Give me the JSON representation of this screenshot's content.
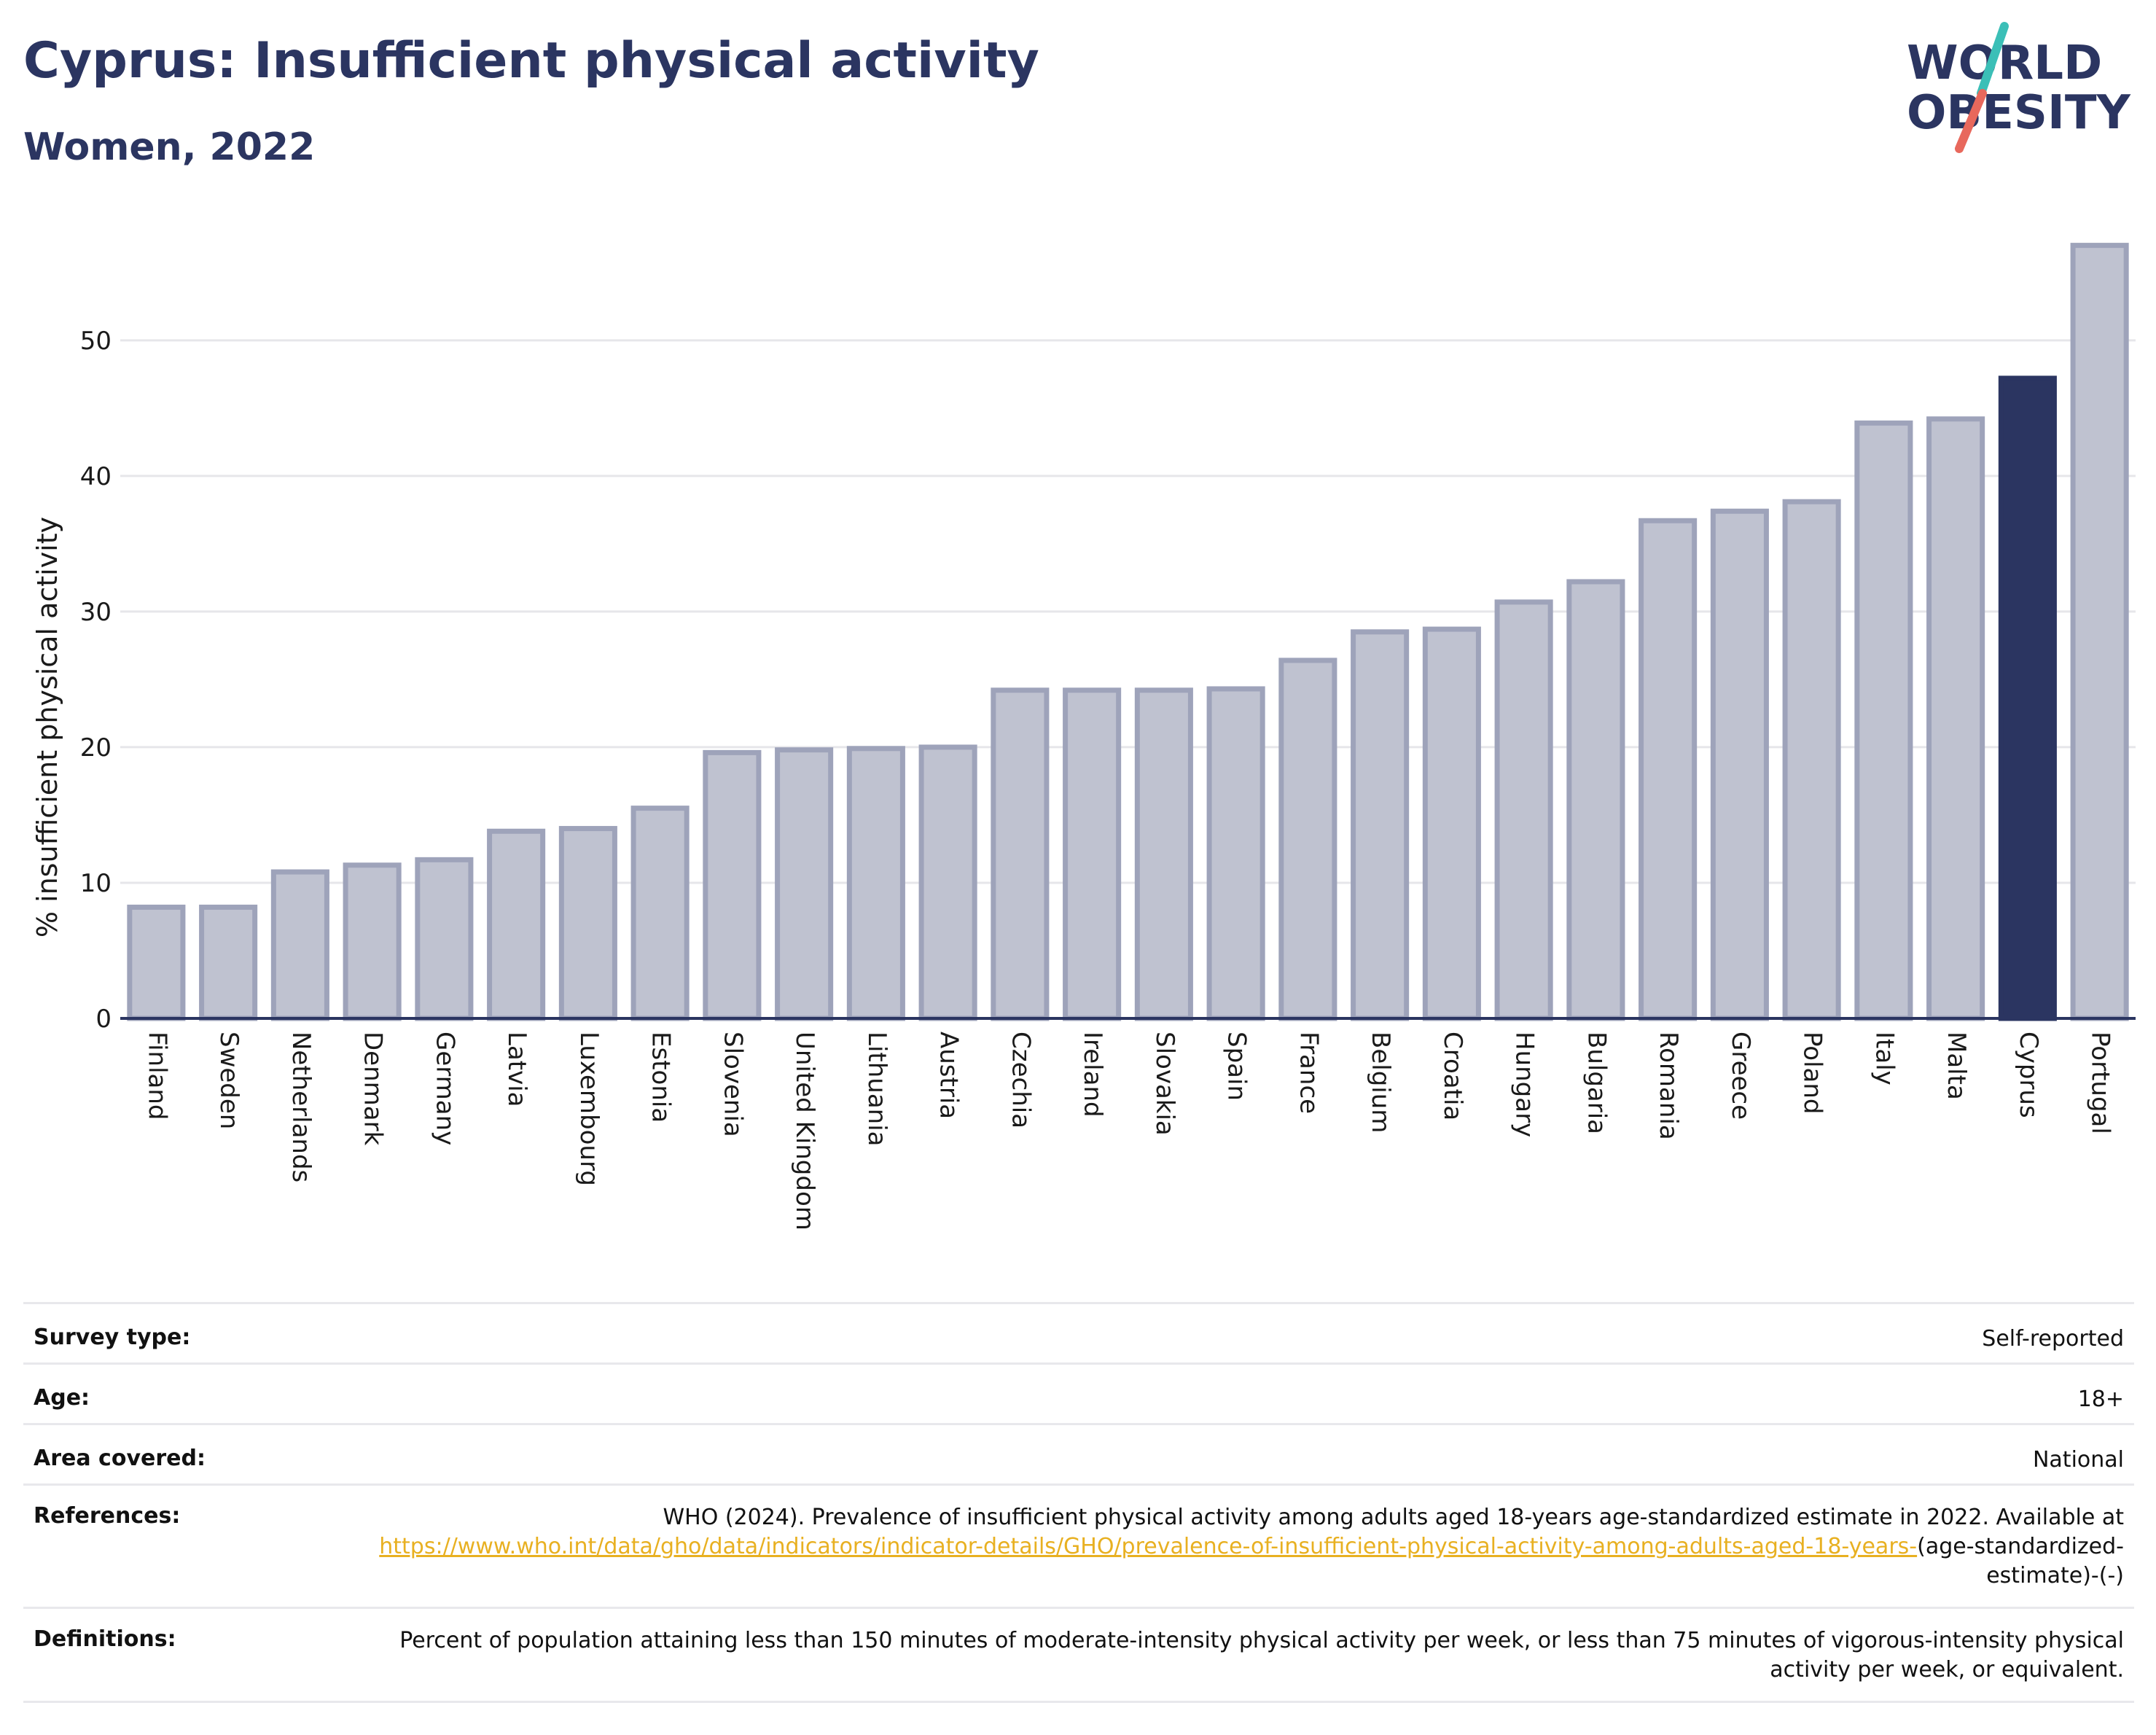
{
  "header": {
    "title": "Cyprus: Insufficient physical activity",
    "subtitle": "Women, 2022"
  },
  "logo": {
    "line1": "WORLD",
    "line2": "OBESITY",
    "text_color": "#2b3561",
    "slash_top_color": "#3bbfb7",
    "slash_bottom_color": "#e8685c"
  },
  "chart_data": {
    "type": "bar",
    "ylabel": "% insufficient physical activity",
    "xlabel": "",
    "ylim": [
      0,
      58
    ],
    "yticks": [
      0,
      10,
      20,
      30,
      40,
      50
    ],
    "grid": true,
    "highlight": "Cyprus",
    "colors": {
      "default": "#bfc2d0",
      "default_edge": "#9ea3ba",
      "highlight": "#2b3561"
    },
    "categories": [
      "Finland",
      "Sweden",
      "Netherlands",
      "Denmark",
      "Germany",
      "Latvia",
      "Luxembourg",
      "Estonia",
      "Slovenia",
      "United Kingdom",
      "Lithuania",
      "Austria",
      "Czechia",
      "Ireland",
      "Slovakia",
      "Spain",
      "France",
      "Belgium",
      "Croatia",
      "Hungary",
      "Bulgaria",
      "Romania",
      "Greece",
      "Poland",
      "Italy",
      "Malta",
      "Cyprus",
      "Portugal"
    ],
    "values": [
      8.2,
      8.2,
      10.8,
      11.3,
      11.7,
      13.8,
      14.0,
      15.5,
      19.6,
      19.8,
      19.9,
      20.0,
      24.2,
      24.2,
      24.2,
      24.3,
      26.4,
      28.5,
      28.7,
      30.7,
      32.2,
      36.7,
      37.4,
      38.1,
      43.9,
      44.2,
      47.2,
      57.0
    ]
  },
  "meta": {
    "survey_type_label": "Survey type:",
    "survey_type_value": "Self-reported",
    "age_label": "Age:",
    "age_value": "18+",
    "area_label": "Area covered:",
    "area_value": "National",
    "references_label": "References:",
    "references_text": "WHO (2024). Prevalence of insufficient physical activity among adults aged 18-years age-standardized estimate in 2022. Available at",
    "references_link": "https://www.who.int/data/gho/data/indicators/indicator-details/GHO/prevalence-of-insufficient-physical-activity-among-adults-aged-18-years-",
    "references_tail": "(age-standardized-estimate)-(-)",
    "definitions_label": "Definitions:",
    "definitions_value": "Percent of population attaining less than 150 minutes of moderate-intensity physical activity per week, or less than 75 minutes of vigorous-intensity physical activity per week, or equivalent."
  }
}
